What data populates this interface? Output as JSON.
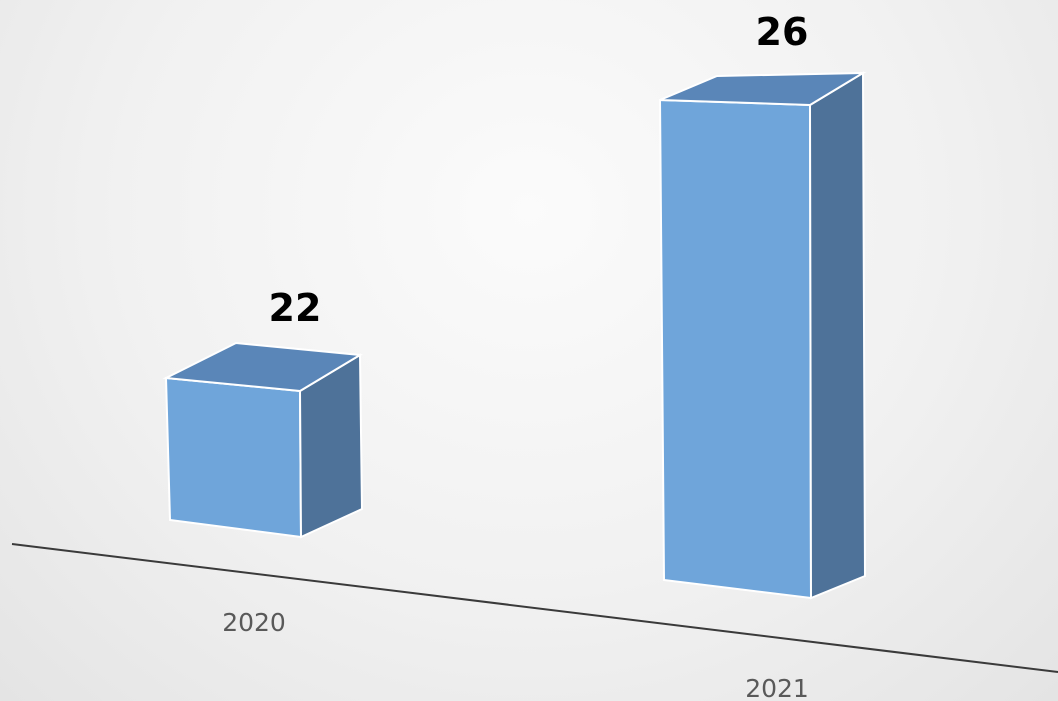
{
  "chart_data": {
    "type": "bar",
    "categories": [
      "2020",
      "2021"
    ],
    "values": [
      22,
      26
    ],
    "title": "",
    "xlabel": "",
    "ylabel": "",
    "data_labels": [
      "22",
      "26"
    ],
    "grid": false,
    "legend": "none",
    "colors": {
      "front": "#6fa5da",
      "top": "#5a86b8",
      "side": "#4e7299",
      "edge": "#ffffff",
      "axis": "#3a3a3a"
    }
  }
}
